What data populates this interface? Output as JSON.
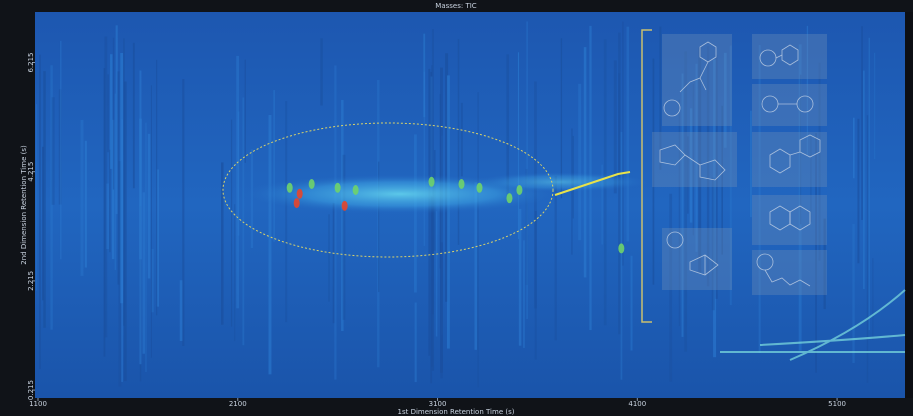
{
  "chart_data": {
    "type": "scatter",
    "title": "Masses: TIC",
    "x_label": "1st Dimension Retention Time (s)",
    "y_label": "2nd Dimension Retention Time (s)",
    "xlim": [
      1085,
      5440
    ],
    "xticks": [
      1100,
      2100,
      3100,
      4100,
      5100
    ],
    "ylim": [
      0.07,
      7.14
    ],
    "yticks": [
      0.215,
      2.215,
      4.215,
      6.215
    ],
    "series": [
      {
        "color": "#e8452a",
        "x": [
          2395,
          2410,
          2635
        ],
        "values": [
          3.64,
          3.81,
          3.59
        ]
      },
      {
        "color": "#6fd36a",
        "x": [
          2360,
          2470,
          2600,
          2690,
          3070,
          3220,
          3310,
          3460,
          3510,
          4020
        ],
        "values": [
          3.92,
          3.99,
          3.92,
          3.88,
          4.03,
          3.99,
          3.92,
          3.73,
          3.88,
          2.81
        ]
      }
    ]
  }
}
